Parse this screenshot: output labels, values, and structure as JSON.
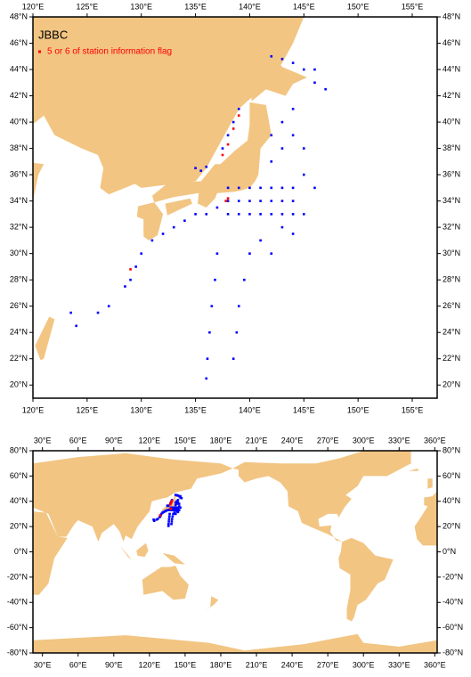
{
  "chart_data": [
    {
      "type": "map",
      "title": "JBBC",
      "xlim": [
        120,
        157.3
      ],
      "ylim": [
        19,
        48
      ],
      "xticks": [
        {
          "value": 120,
          "label": "120°E"
        },
        {
          "value": 125,
          "label": "125°E"
        },
        {
          "value": 130,
          "label": "130°E"
        },
        {
          "value": 135,
          "label": "135°E"
        },
        {
          "value": 140,
          "label": "140°E"
        },
        {
          "value": 145,
          "label": "145°E"
        },
        {
          "value": 150,
          "label": "150°E"
        },
        {
          "value": 155,
          "label": "155°E"
        }
      ],
      "yticks": [
        {
          "value": 20,
          "label": "20°N"
        },
        {
          "value": 22,
          "label": "22°N"
        },
        {
          "value": 24,
          "label": "24°N"
        },
        {
          "value": 26,
          "label": "26°N"
        },
        {
          "value": 28,
          "label": "28°N"
        },
        {
          "value": 30,
          "label": "30°N"
        },
        {
          "value": 32,
          "label": "32°N"
        },
        {
          "value": 34,
          "label": "34°N"
        },
        {
          "value": 36,
          "label": "36°N"
        },
        {
          "value": 38,
          "label": "38°N"
        },
        {
          "value": 40,
          "label": "40°N"
        },
        {
          "value": 42,
          "label": "42°N"
        },
        {
          "value": 44,
          "label": "44°N"
        },
        {
          "value": 46,
          "label": "46°N"
        },
        {
          "value": 48,
          "label": "48°N"
        }
      ],
      "series": [
        {
          "color": "#0000ff",
          "x": [
            138,
            139,
            140,
            141,
            142,
            143,
            144,
            138,
            139,
            140,
            141,
            142,
            143,
            144,
            138,
            139,
            140,
            141,
            142,
            143,
            144,
            135,
            136,
            137,
            134,
            133,
            132,
            131,
            130,
            129.5,
            129,
            128.5,
            127,
            126,
            124,
            123.5,
            137,
            136.8,
            136.5,
            136.3,
            136.1,
            136,
            140,
            139.5,
            139,
            138.8,
            138.5,
            135,
            135.5,
            136,
            137.5,
            138,
            138.5,
            139,
            142,
            143,
            144,
            145,
            143,
            144,
            145,
            146,
            142,
            142,
            143,
            144,
            145,
            146,
            147,
            146,
            141,
            142,
            143,
            144,
            145
          ],
          "y": [
            33,
            33,
            33,
            33,
            33,
            33,
            33,
            34,
            34,
            34,
            34,
            34,
            34,
            34,
            35,
            35,
            35,
            35,
            35,
            35,
            35,
            33,
            33,
            33.5,
            32.5,
            32,
            31.5,
            31,
            30,
            29,
            28,
            27.5,
            26,
            25.5,
            24.5,
            25.5,
            30,
            28,
            26,
            24,
            22,
            20.5,
            30,
            28,
            26,
            24,
            22,
            36.5,
            36.3,
            36.6,
            38,
            39,
            40,
            41,
            37,
            38,
            39,
            38,
            40,
            41,
            36,
            35,
            39,
            45,
            44.8,
            44.5,
            44,
            43,
            42.5,
            44,
            31,
            30,
            32,
            31.5,
            33
          ]
        },
        {
          "name": "5 or 6 of station information flag",
          "color": "#ff0000",
          "x": [
            137.5,
            138,
            139,
            138.5,
            129,
            138,
            137.8
          ],
          "y": [
            37.5,
            38.3,
            40.5,
            39.5,
            28.8,
            34.2,
            34
          ]
        }
      ]
    },
    {
      "type": "map",
      "xlim": [
        22,
        362
      ],
      "ylim": [
        -80,
        80
      ],
      "xticks": [
        {
          "value": 30,
          "label": "30°E"
        },
        {
          "value": 60,
          "label": "60°E"
        },
        {
          "value": 90,
          "label": "90°E"
        },
        {
          "value": 120,
          "label": "120°E"
        },
        {
          "value": 150,
          "label": "150°E"
        },
        {
          "value": 180,
          "label": "180°E"
        },
        {
          "value": 210,
          "label": "210°E"
        },
        {
          "value": 240,
          "label": "240°E"
        },
        {
          "value": 270,
          "label": "270°E"
        },
        {
          "value": 300,
          "label": "300°E"
        },
        {
          "value": 330,
          "label": "330°E"
        },
        {
          "value": 360,
          "label": "360°E"
        }
      ],
      "yticks": [
        {
          "value": 80,
          "label": "80°N"
        },
        {
          "value": 60,
          "label": "60°N"
        },
        {
          "value": 40,
          "label": "40°N"
        },
        {
          "value": 20,
          "label": "20°N"
        },
        {
          "value": 0,
          "label": "0°N"
        },
        {
          "value": -20,
          "label": "-20°N"
        },
        {
          "value": -40,
          "label": "-40°N"
        },
        {
          "value": -60,
          "label": "-60°N"
        },
        {
          "value": -80,
          "label": "-80°N"
        }
      ]
    }
  ]
}
